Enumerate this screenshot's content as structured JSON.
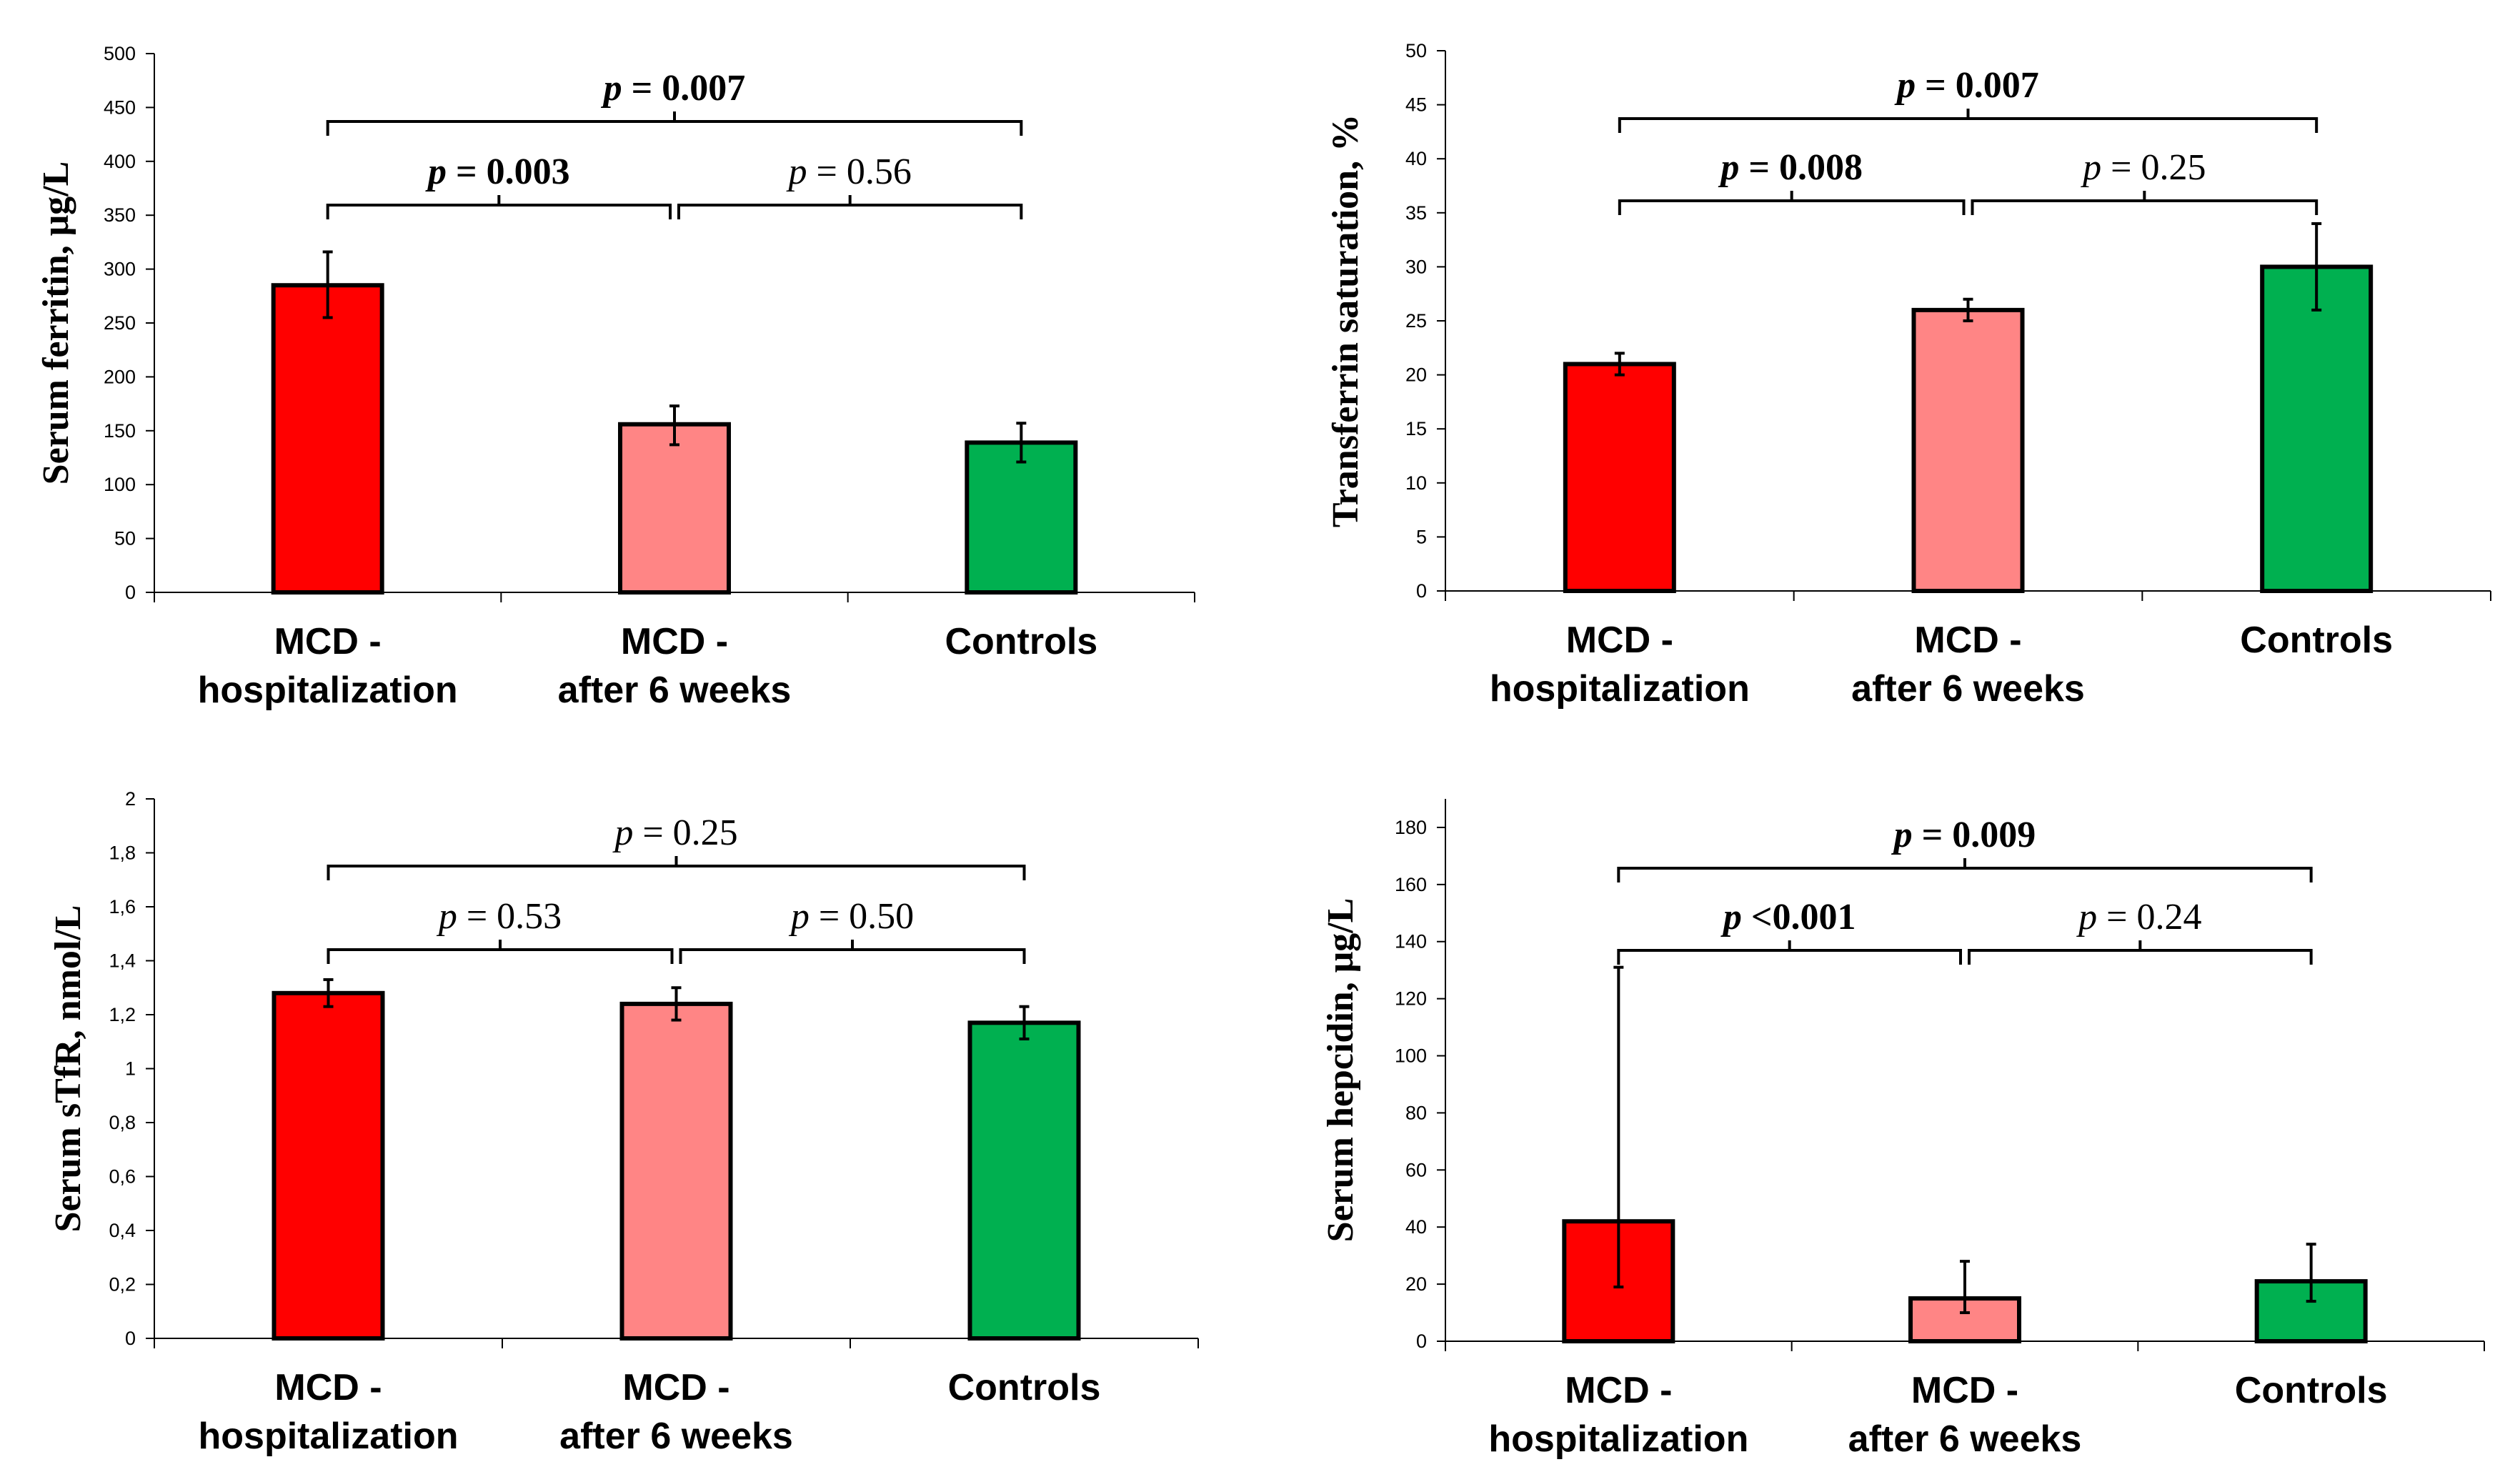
{
  "colors": {
    "hospitalization": "#ff0000",
    "after6weeks": "#ff8585",
    "controls": "#00b050",
    "axis": "#000000"
  },
  "chart_data": [
    {
      "type": "bar",
      "ylabel": "Serum ferritin, μg/L",
      "categories": [
        [
          "MCD -",
          "hospitalization"
        ],
        [
          "MCD -",
          "after 6 weeks"
        ],
        [
          "Controls"
        ]
      ],
      "values": [
        285,
        156,
        139
      ],
      "error_low": [
        255,
        137,
        121
      ],
      "error_high": [
        316,
        173,
        157
      ],
      "ylim": [
        0,
        500
      ],
      "yticks": [
        "0",
        "50",
        "100",
        "150",
        "200",
        "250",
        "300",
        "350",
        "400",
        "450",
        "500"
      ],
      "comparisons": [
        {
          "from": 0,
          "to": 2,
          "level": "top",
          "text": "= 0.007",
          "bold": true
        },
        {
          "from": 0,
          "to": 1,
          "level": "low",
          "text": "= 0.003",
          "bold": true
        },
        {
          "from": 1,
          "to": 2,
          "level": "low",
          "text": "= 0.56",
          "bold": false
        }
      ]
    },
    {
      "type": "bar",
      "ylabel": "Transferrin saturation, %",
      "categories": [
        [
          "MCD -",
          "hospitalization"
        ],
        [
          "MCD -",
          "after 6 weeks"
        ],
        [
          "Controls"
        ]
      ],
      "values": [
        21,
        26,
        30
      ],
      "error_low": [
        20,
        25,
        26
      ],
      "error_high": [
        22,
        27,
        34
      ],
      "ylim": [
        0,
        50
      ],
      "yticks": [
        "0",
        "5",
        "10",
        "15",
        "20",
        "25",
        "30",
        "35",
        "40",
        "45",
        "50"
      ],
      "comparisons": [
        {
          "from": 0,
          "to": 2,
          "level": "top",
          "text": "= 0.007",
          "bold": true
        },
        {
          "from": 0,
          "to": 1,
          "level": "low",
          "text": "= 0.008",
          "bold": true
        },
        {
          "from": 1,
          "to": 2,
          "level": "low",
          "text": "= 0.25",
          "bold": false
        }
      ]
    },
    {
      "type": "bar",
      "ylabel": "Serum sTfR, nmol/L",
      "categories": [
        [
          "MCD -",
          "hospitalization"
        ],
        [
          "MCD -",
          "after 6 weeks"
        ],
        [
          "Controls"
        ]
      ],
      "values": [
        1.28,
        1.24,
        1.17
      ],
      "error_low": [
        1.23,
        1.18,
        1.11
      ],
      "error_high": [
        1.33,
        1.3,
        1.23
      ],
      "ylim": [
        0,
        2
      ],
      "yticks": [
        "0",
        "0,2",
        "0,4",
        "0,6",
        "0,8",
        "1",
        "1,2",
        "1,4",
        "1,6",
        "1,8",
        "2"
      ],
      "comparisons": [
        {
          "from": 0,
          "to": 2,
          "level": "top",
          "text": "= 0.25",
          "bold": false
        },
        {
          "from": 0,
          "to": 1,
          "level": "low",
          "text": "= 0.53",
          "bold": false
        },
        {
          "from": 1,
          "to": 2,
          "level": "low",
          "text": "= 0.50",
          "bold": false
        }
      ]
    },
    {
      "type": "bar",
      "ylabel": "Serum hepcidin, μg/L",
      "categories": [
        [
          "MCD -",
          "hospitalization"
        ],
        [
          "MCD -",
          "after 6 weeks"
        ],
        [
          "Controls"
        ]
      ],
      "values": [
        42,
        15,
        21
      ],
      "error_low": [
        19,
        10,
        14
      ],
      "error_high": [
        131,
        28,
        34
      ],
      "ylim": [
        0,
        190
      ],
      "yticks": [
        "0",
        "20",
        "40",
        "60",
        "80",
        "100",
        "120",
        "140",
        "160",
        "180"
      ],
      "comparisons": [
        {
          "from": 0,
          "to": 2,
          "level": "top",
          "text": "= 0.009",
          "bold": true
        },
        {
          "from": 0,
          "to": 1,
          "level": "low",
          "text": "<0.001",
          "bold": true
        },
        {
          "from": 1,
          "to": 2,
          "level": "low",
          "text": "= 0.24",
          "bold": false
        }
      ]
    }
  ]
}
